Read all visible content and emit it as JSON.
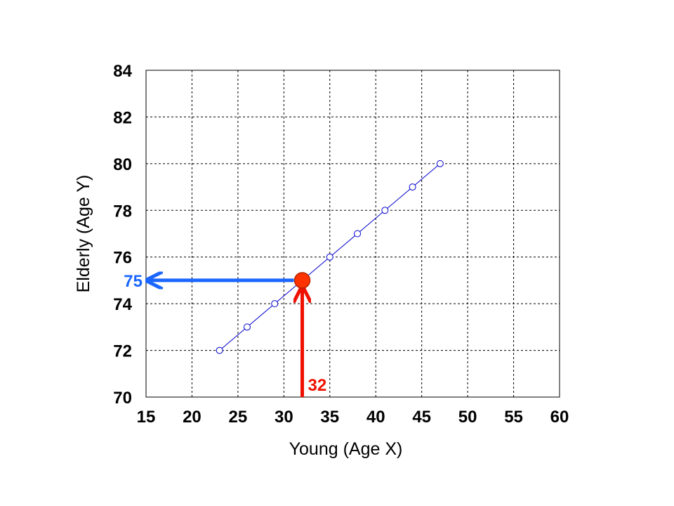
{
  "chart_data": {
    "type": "line",
    "title": "",
    "xlabel": "Young (Age X)",
    "ylabel": "Elderly (Age Y)",
    "xlim": [
      15,
      60
    ],
    "ylim": [
      70,
      84
    ],
    "xticks": [
      15,
      20,
      25,
      30,
      35,
      40,
      45,
      50,
      55,
      60
    ],
    "yticks": [
      70,
      72,
      74,
      76,
      78,
      80,
      82,
      84
    ],
    "grid": true,
    "series": [
      {
        "x": [
          23,
          26,
          29,
          35,
          38,
          41,
          44,
          47
        ],
        "y": [
          72,
          73,
          74,
          76,
          77,
          78,
          79,
          80
        ],
        "color": "#0000cc",
        "marker": "open-circle"
      }
    ],
    "highlight": {
      "x": 32,
      "y": 75,
      "color": "#ff3300"
    },
    "annotations": [
      {
        "label": "32",
        "color": "#ee1100",
        "direction": "up",
        "from": [
          32,
          70
        ],
        "to": [
          32,
          75
        ]
      },
      {
        "label": "75",
        "color": "#1a66ff",
        "direction": "left",
        "from": [
          32,
          75
        ],
        "to": [
          15,
          75
        ]
      }
    ]
  }
}
